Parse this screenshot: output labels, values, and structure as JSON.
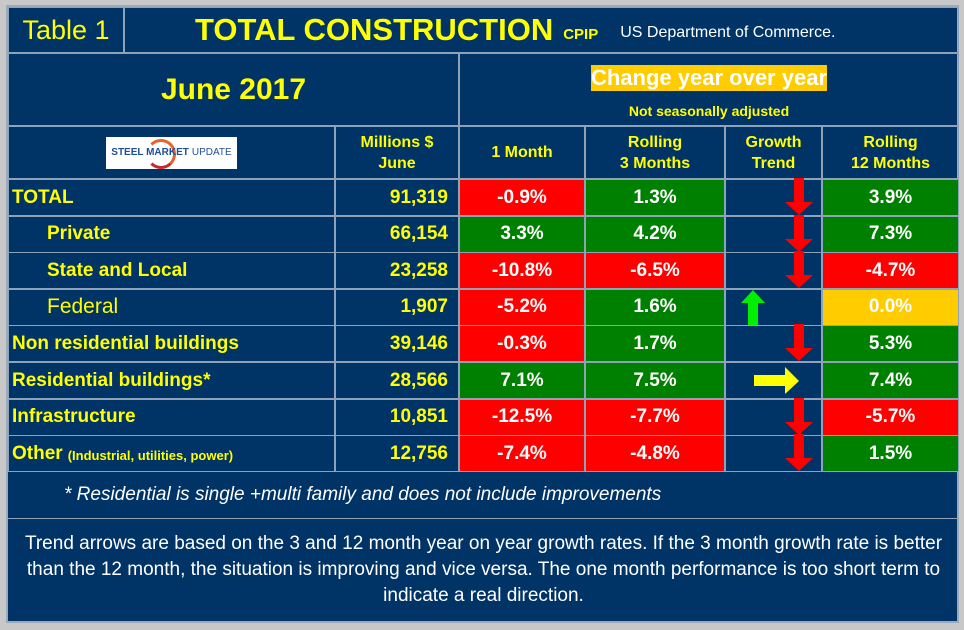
{
  "title": {
    "table_label": "Table 1",
    "main": "TOTAL CONSTRUCTION",
    "sub": "CPIP",
    "source": "US Department of Commerce."
  },
  "period": "June 2017",
  "change_header": {
    "title": "Change year over year",
    "note": "Not seasonally adjusted"
  },
  "logo": {
    "text_bold": "STEEL MARKET",
    "text_light": "UPDATE"
  },
  "columns": {
    "millions": [
      "Millions $",
      "June"
    ],
    "m1": [
      "1 Month"
    ],
    "m3": [
      "Rolling",
      "3 Months"
    ],
    "trend": [
      "Growth",
      "Trend"
    ],
    "m12": [
      "Rolling",
      "12 Months"
    ]
  },
  "colors": {
    "background": "#003366",
    "red": "#ff0000",
    "green": "#008000",
    "amber": "#ffcc00",
    "yellow": "#ffff00",
    "up_arrow": "#00ee00"
  },
  "rows": [
    {
      "label": "TOTAL",
      "indent": false,
      "style": "bold",
      "millions": "91,319",
      "m1": "-0.9%",
      "m1c": "r",
      "m3": "1.3%",
      "m3c": "g",
      "trend": "down",
      "m12": "3.9%",
      "m12c": "g"
    },
    {
      "label": "Private",
      "indent": true,
      "style": "bold",
      "millions": "66,154",
      "m1": "3.3%",
      "m1c": "g",
      "m3": "4.2%",
      "m3c": "g",
      "trend": "down",
      "m12": "7.3%",
      "m12c": "g"
    },
    {
      "label": "State and Local",
      "indent": true,
      "style": "bold",
      "millions": "23,258",
      "m1": "-10.8%",
      "m1c": "r",
      "m3": "-6.5%",
      "m3c": "r",
      "trend": "down",
      "m12": "-4.7%",
      "m12c": "r"
    },
    {
      "label": "Federal",
      "indent": true,
      "style": "normal",
      "millions": "1,907",
      "m1": "-5.2%",
      "m1c": "r",
      "m3": "1.6%",
      "m3c": "g",
      "trend": "up",
      "m12": "0.0%",
      "m12c": "a"
    },
    {
      "label": "Non residential buildings",
      "indent": false,
      "style": "bold",
      "millions": "39,146",
      "m1": "-0.3%",
      "m1c": "r",
      "m3": "1.7%",
      "m3c": "g",
      "trend": "down",
      "m12": "5.3%",
      "m12c": "g"
    },
    {
      "label": "Residential buildings*",
      "indent": false,
      "style": "bold",
      "millions": "28,566",
      "m1": "7.1%",
      "m1c": "g",
      "m3": "7.5%",
      "m3c": "g",
      "trend": "right",
      "m12": "7.4%",
      "m12c": "g"
    },
    {
      "label": "Infrastructure",
      "indent": false,
      "style": "bold",
      "millions": "10,851",
      "m1": "-12.5%",
      "m1c": "r",
      "m3": "-7.7%",
      "m3c": "r",
      "trend": "down",
      "m12": "-5.7%",
      "m12c": "r"
    },
    {
      "label": "Other",
      "sublabel": "(Industrial, utilities, power)",
      "indent": false,
      "style": "bold",
      "millions": "12,756",
      "m1": "-7.4%",
      "m1c": "r",
      "m3": "-4.8%",
      "m3c": "r",
      "trend": "down",
      "m12": "1.5%",
      "m12c": "g"
    }
  ],
  "footnote": "* Residential is single +multi family and does not include improvements",
  "explanation": "Trend arrows are based on the 3 and 12 month year on year growth rates. If the 3 month growth rate is better than the 12 month, the situation is improving and vice versa. The one month performance is too short term to indicate a real direction."
}
